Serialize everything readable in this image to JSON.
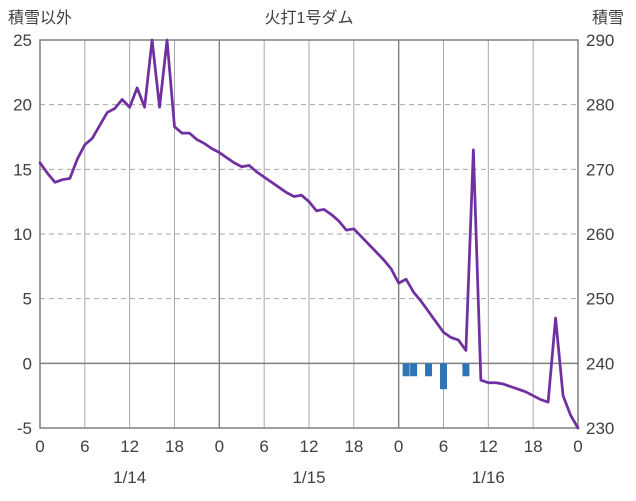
{
  "chart_data": {
    "type": "line+bar",
    "title": "火打1号ダム",
    "left_axis": {
      "title": "積雪以外",
      "ticks": [
        25,
        20,
        15,
        10,
        5,
        0,
        -5
      ],
      "range": [
        -5,
        25
      ]
    },
    "right_axis": {
      "title": "積雪",
      "ticks": [
        290,
        280,
        270,
        260,
        250,
        240,
        230
      ],
      "range": [
        230,
        290
      ]
    },
    "x_axis": {
      "unit": "hour",
      "range_hours": [
        0,
        72
      ],
      "tick_hours": [
        0,
        6,
        12,
        18,
        24,
        30,
        36,
        42,
        48,
        54,
        60,
        66,
        72
      ],
      "tick_labels": [
        "0",
        "6",
        "12",
        "18",
        "0",
        "6",
        "12",
        "18",
        "0",
        "6",
        "12",
        "18",
        "0"
      ],
      "day_label_hours": [
        12,
        36,
        60
      ],
      "day_labels": [
        "1/14",
        "1/15",
        "1/16"
      ]
    },
    "series": [
      {
        "name": "積雪",
        "type": "line",
        "axis": "right",
        "color": "#7030A0",
        "x_hours": [
          0,
          1,
          2,
          3,
          4,
          5,
          6,
          7,
          8,
          9,
          10,
          11,
          12,
          13,
          14,
          15,
          16,
          17,
          18,
          19,
          20,
          21,
          22,
          23,
          24,
          25,
          26,
          27,
          28,
          29,
          30,
          31,
          32,
          33,
          34,
          35,
          36,
          37,
          38,
          39,
          40,
          41,
          42,
          43,
          44,
          45,
          46,
          47,
          48,
          49,
          50,
          51,
          52,
          53,
          54,
          55,
          56,
          57,
          58,
          59,
          60,
          61,
          62,
          63,
          64,
          65,
          66,
          67,
          68,
          69,
          70,
          71,
          72
        ],
        "values": [
          271,
          269.4,
          268,
          268.4,
          268.6,
          271.6,
          273.8,
          274.8,
          276.8,
          278.8,
          279.4,
          280.8,
          279.6,
          282.6,
          279.6,
          290,
          279.6,
          290,
          276.6,
          275.6,
          275.6,
          274.6,
          274,
          273.2,
          272.6,
          271.8,
          271,
          270.4,
          270.6,
          269.6,
          268.8,
          268,
          267.2,
          266.4,
          265.8,
          266,
          265,
          263.6,
          263.8,
          263,
          262,
          260.6,
          260.8,
          259.6,
          258.4,
          257.2,
          256,
          254.6,
          252.4,
          253,
          251,
          249.6,
          248,
          246.4,
          244.8,
          244,
          243.6,
          242,
          273,
          237.4,
          237,
          237,
          236.8,
          236.4,
          236,
          235.6,
          235,
          234.4,
          234,
          247,
          235,
          232,
          230
        ]
      },
      {
        "name": "積雪以外",
        "type": "bar",
        "axis": "left",
        "color": "#2E75B6",
        "points": [
          {
            "hour": 49,
            "value": -1
          },
          {
            "hour": 50,
            "value": -1
          },
          {
            "hour": 52,
            "value": -1
          },
          {
            "hour": 54,
            "value": -2
          },
          {
            "hour": 57,
            "value": -1
          }
        ]
      }
    ],
    "style": {
      "grid_color": "#A8A8A8",
      "day_boundary_color": "#808080",
      "axis_border_color": "#7F7F7F",
      "zero_line_color": "#7F7F7F",
      "text_color": "#404040",
      "background": "#FFFFFF"
    },
    "grid": {
      "horizontal_dashed_at_left_values": [
        20,
        15,
        10,
        5
      ],
      "zero_line_solid": true,
      "vertical_every_hours": 6
    }
  }
}
